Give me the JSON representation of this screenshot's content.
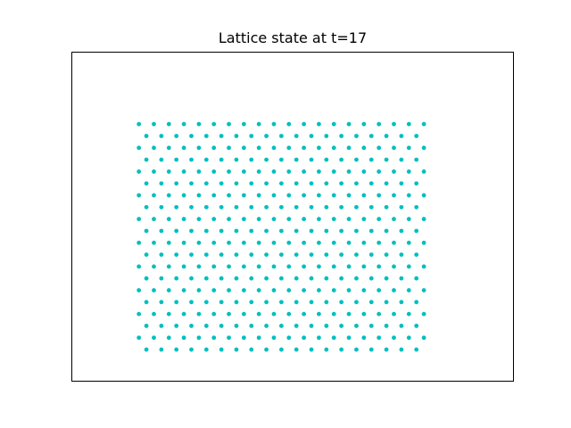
{
  "chart_data": {
    "type": "scatter",
    "title": "Lattice state at t=17",
    "xlabel": "",
    "ylabel": "",
    "axes_visible": false,
    "grid": false,
    "marker_color": "#00bfbf",
    "lattice": {
      "kind": "triangular",
      "rows": 20,
      "even_row_points": 19,
      "odd_row_points": 20,
      "row_step": 1,
      "col_step": 1,
      "odd_row_offset": -0.5
    },
    "xlim": [
      -5,
      24.5
    ],
    "ylim": [
      -2.625,
      25.1
    ]
  }
}
